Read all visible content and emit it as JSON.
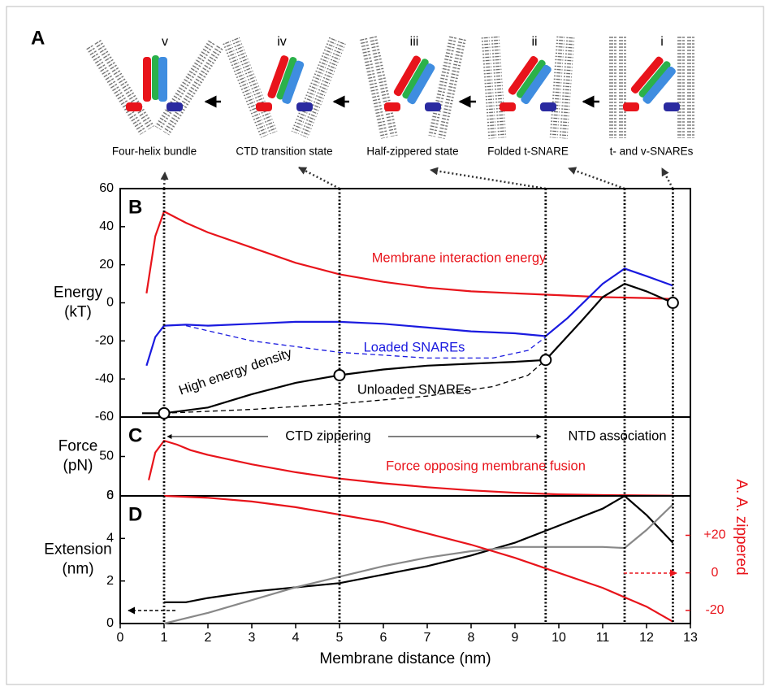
{
  "panel_a": {
    "label": "A",
    "states": [
      {
        "numeral": "v",
        "caption": "Four-helix bundle"
      },
      {
        "numeral": "iv",
        "caption": "CTD transition state"
      },
      {
        "numeral": "iii",
        "caption": "Half-zippered state"
      },
      {
        "numeral": "ii",
        "caption": "Folded t-SNARE"
      },
      {
        "numeral": "i",
        "caption": "t- and v-SNAREs"
      }
    ]
  },
  "chart_data": [
    {
      "type": "line",
      "label": "B",
      "ylabel": [
        "Energy",
        "(kT)"
      ],
      "xlim": [
        0,
        13
      ],
      "ylim": [
        -60,
        60
      ],
      "yticks": [
        -60,
        -40,
        -20,
        0,
        20,
        40,
        60
      ],
      "vlines": [
        1,
        5,
        9.7,
        11.5,
        12.6
      ],
      "annotations": [
        "High energy density"
      ],
      "series": [
        {
          "name": "Membrane interaction energy",
          "color": "#e8141b",
          "x": [
            0.6,
            0.8,
            1.0,
            1.5,
            2,
            3,
            4,
            5,
            6,
            7,
            8,
            9,
            10,
            11,
            12,
            12.6
          ],
          "values": [
            5,
            35,
            48,
            42,
            37,
            29,
            21,
            15,
            11,
            8,
            6,
            5,
            4,
            3,
            2.5,
            2
          ]
        },
        {
          "name": "Loaded SNAREs",
          "color": "#1a1adf",
          "x": [
            0.6,
            0.8,
            1.0,
            1.5,
            2,
            3,
            4,
            5,
            6,
            7,
            8,
            9,
            9.7,
            10.2,
            11,
            11.5,
            12,
            12.6
          ],
          "values": [
            -33,
            -18,
            -12,
            -11.5,
            -12,
            -11,
            -10,
            -10,
            -11,
            -13,
            -15,
            -16,
            -17.5,
            -8,
            10,
            18,
            14,
            9
          ]
        },
        {
          "color": "#1a1adf",
          "dash": true,
          "x": [
            1.5,
            3,
            5,
            7,
            8.5,
            9.3,
            9.7
          ],
          "values": [
            -12,
            -20,
            -26,
            -29,
            -29,
            -25,
            -18
          ]
        },
        {
          "name": "Unloaded SNAREs",
          "color": "#000000",
          "x": [
            0.5,
            1.0,
            2,
            3,
            4,
            5,
            6,
            7,
            8,
            9,
            9.7,
            10.5,
            11,
            11.5,
            12,
            12.6
          ],
          "values": [
            -58,
            -58,
            -55,
            -48,
            -42,
            -38,
            -35,
            -33,
            -32,
            -31,
            -30,
            -10,
            3,
            10,
            6,
            0
          ]
        },
        {
          "color": "#000000",
          "dash": true,
          "x": [
            1,
            3,
            5,
            7,
            8.5,
            9.3,
            9.7
          ],
          "values": [
            -58,
            -56,
            -53,
            -49,
            -44,
            -38,
            -30
          ]
        }
      ],
      "points": {
        "x": [
          1,
          5,
          9.7,
          12.6
        ],
        "values": [
          -58,
          -38,
          -30,
          0
        ]
      }
    },
    {
      "type": "line",
      "label": "C",
      "ylabel": [
        "Force",
        "(pN)"
      ],
      "xlim": [
        0,
        13
      ],
      "ylim": [
        0,
        100
      ],
      "yticks": [
        0,
        50
      ],
      "annotations": [
        "CTD zippering",
        "NTD association"
      ],
      "series": [
        {
          "name": "Force opposing membrane fusion",
          "color": "#e8141b",
          "x": [
            0.65,
            0.8,
            1.0,
            1.3,
            1.6,
            2,
            3,
            4,
            5,
            6,
            7,
            8,
            9,
            10,
            11,
            12.6
          ],
          "values": [
            20,
            55,
            70,
            65,
            58,
            52,
            40,
            30,
            22,
            16,
            11,
            7,
            4,
            2,
            1,
            0.3
          ]
        }
      ]
    },
    {
      "type": "line",
      "label": "D",
      "ylabel": [
        "Extension",
        "(nm)"
      ],
      "y2label": "A. A. zippered",
      "y2color": "#e8141b",
      "xlabel": "Membrane distance (nm)",
      "xlim": [
        0,
        13
      ],
      "xticks": [
        0,
        1,
        2,
        3,
        4,
        5,
        6,
        7,
        8,
        9,
        10,
        11,
        12,
        13
      ],
      "ylim": [
        0,
        6
      ],
      "yticks": [
        0,
        2,
        4,
        6
      ],
      "y2lim": [
        -27,
        41
      ],
      "y2ticks": [
        {
          "value": -20,
          "label": "-20"
        },
        0,
        {
          "value": 20,
          "label": "+20"
        }
      ],
      "series": [
        {
          "color": "#000000",
          "x": [
            1,
            1.5,
            2,
            3,
            4,
            5,
            6,
            7,
            8,
            9,
            10,
            11,
            11.5,
            12,
            12.6
          ],
          "values": [
            1,
            1,
            1.2,
            1.5,
            1.7,
            1.9,
            2.3,
            2.7,
            3.2,
            3.8,
            4.6,
            5.4,
            6,
            5.1,
            3.8
          ]
        },
        {
          "color": "#888888",
          "x": [
            1,
            2,
            3,
            4,
            5,
            6,
            7,
            8,
            9,
            10,
            11,
            11.5,
            12,
            12.6
          ],
          "values": [
            0,
            0.5,
            1.1,
            1.7,
            2.2,
            2.7,
            3.1,
            3.4,
            3.6,
            3.6,
            3.6,
            3.55,
            4.4,
            5.6
          ]
        },
        {
          "color": "#e8141b",
          "axis": "y2",
          "x": [
            1,
            2,
            3,
            4,
            5,
            6,
            7,
            8,
            9,
            10,
            11,
            11.5,
            12,
            12.6
          ],
          "values": [
            41,
            40,
            38,
            35,
            31,
            27,
            21,
            15,
            8,
            0,
            -8,
            -13,
            -18,
            -26
          ]
        }
      ]
    }
  ]
}
